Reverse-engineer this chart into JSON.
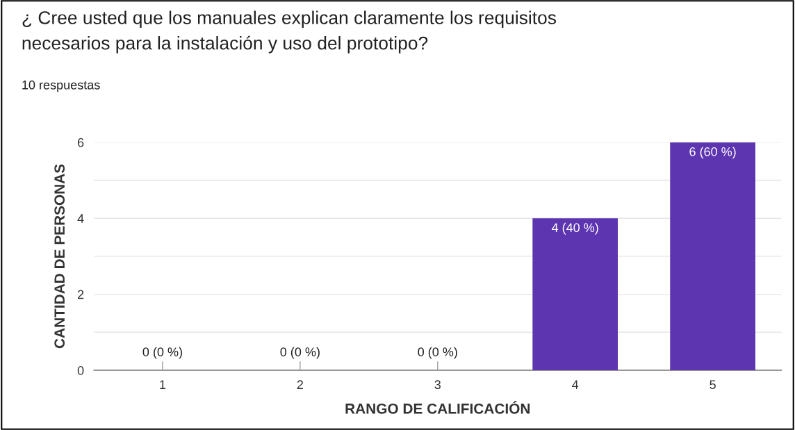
{
  "chart_data": {
    "type": "bar",
    "title": "¿ Cree usted que los manuales explican claramente los requisitos\nnecesarios para la instalación y uso del prototipo?",
    "subtitle": "10 respuestas",
    "xlabel": "RANGO DE CALIFICACIÓN",
    "ylabel": "CANTIDAD DE PERSONAS",
    "categories": [
      "1",
      "2",
      "3",
      "4",
      "5"
    ],
    "values": [
      0,
      0,
      0,
      4,
      6
    ],
    "value_labels": [
      "0 (0 %)",
      "0 (0 %)",
      "0 (0 %)",
      "4 (40 %)",
      "6 (60 %)"
    ],
    "color": "#5e35b1",
    "ylim": [
      0,
      6
    ],
    "yticks": [
      0,
      {
        "value": 1,
        "label": null
      },
      2,
      {
        "value": 3,
        "label": null
      },
      4,
      {
        "value": 5,
        "label": null
      },
      6
    ],
    "grid": "y",
    "legend": false
  }
}
